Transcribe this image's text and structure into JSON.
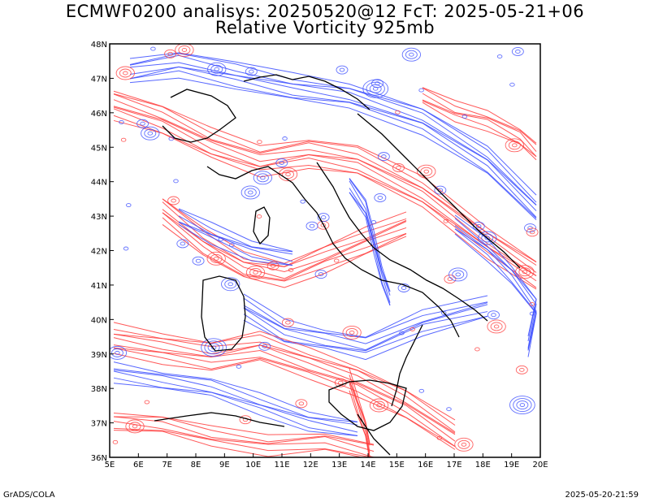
{
  "header": {
    "line1": "ECMWF0200 analisys: 20250520@12 FcT: 2025-05-21+06",
    "line2": "Relative Vorticity 925mb"
  },
  "map": {
    "lon_labels": [
      "5E",
      "6E",
      "7E",
      "8E",
      "9E",
      "10E",
      "11E",
      "12E",
      "13E",
      "14E",
      "15E",
      "16E",
      "17E",
      "18E",
      "19E",
      "20E"
    ],
    "lat_labels": [
      "48N",
      "47N",
      "46N",
      "45N",
      "44N",
      "43N",
      "42N",
      "41N",
      "40N",
      "39N",
      "38N",
      "37N",
      "36N"
    ],
    "lon_range": [
      5,
      20
    ],
    "lat_range": [
      36,
      48
    ],
    "colors": {
      "positive": "#ff3b3b",
      "negative": "#3a4cff",
      "coast": "#000000",
      "frame": "#000000"
    }
  },
  "footer": {
    "left": "GrADS/COLA",
    "right": "2025-05-20-21:59"
  }
}
